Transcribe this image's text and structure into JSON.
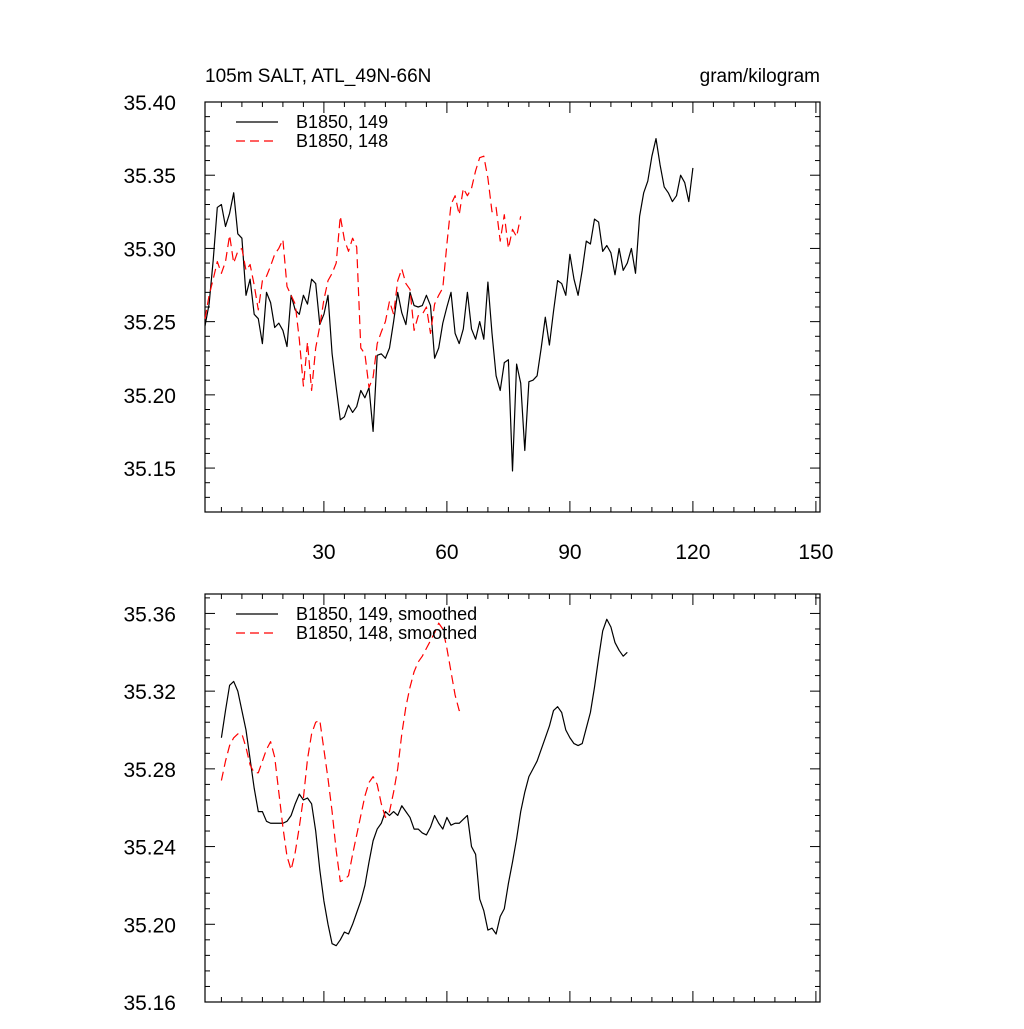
{
  "colors": {
    "series_149": "#000000",
    "series_148": "#ff0000",
    "axis": "#000000",
    "background": "#ffffff"
  },
  "chart_data": [
    {
      "type": "line",
      "title": "105m SALT, ATL_49N-66N",
      "units": "gram/kilogram",
      "xlim": [
        1,
        151
      ],
      "ylim": [
        35.12,
        35.4
      ],
      "x_ticks": [
        30,
        60,
        90,
        120,
        150
      ],
      "y_ticks": [
        35.15,
        35.2,
        35.25,
        35.3,
        35.35,
        35.4
      ],
      "y_tick_labels": [
        "35.15",
        "35.20",
        "35.25",
        "35.30",
        "35.35",
        "35.40"
      ],
      "x_tick_labels": [
        "30",
        "60",
        "90",
        "120",
        "150"
      ],
      "grid": false,
      "legend_position": "top-left",
      "series": [
        {
          "name": "B1850, 149",
          "color": "#000000",
          "dash": "solid",
          "x_start": 1,
          "values": [
            35.247,
            35.262,
            35.292,
            35.328,
            35.33,
            35.315,
            35.324,
            35.338,
            35.31,
            35.307,
            35.268,
            35.279,
            35.255,
            35.252,
            35.235,
            35.27,
            35.263,
            35.246,
            35.249,
            35.244,
            35.233,
            35.268,
            35.258,
            35.255,
            35.268,
            35.262,
            35.279,
            35.276,
            35.248,
            35.255,
            35.268,
            35.228,
            35.205,
            35.183,
            35.185,
            35.193,
            35.188,
            35.192,
            35.203,
            35.198,
            35.205,
            35.175,
            35.227,
            35.228,
            35.225,
            35.232,
            35.25,
            35.27,
            35.256,
            35.248,
            35.27,
            35.261,
            35.26,
            35.261,
            35.268,
            35.261,
            35.225,
            35.232,
            35.249,
            35.26,
            35.27,
            35.242,
            35.235,
            35.245,
            35.27,
            35.245,
            35.238,
            35.25,
            35.238,
            35.277,
            35.242,
            35.213,
            35.203,
            35.222,
            35.224,
            35.148,
            35.221,
            35.208,
            35.162,
            35.209,
            35.21,
            35.213,
            35.232,
            35.253,
            35.234,
            35.257,
            35.278,
            35.276,
            35.268,
            35.296,
            35.279,
            35.268,
            35.285,
            35.305,
            35.303,
            35.32,
            35.318,
            35.298,
            35.302,
            35.297,
            35.282,
            35.3,
            35.285,
            35.29,
            35.3,
            35.283,
            35.322,
            35.338,
            35.346,
            35.363,
            35.375,
            35.357,
            35.342,
            35.338,
            35.332,
            35.336,
            35.35,
            35.345,
            35.332,
            35.355
          ]
        },
        {
          "name": "B1850, 148",
          "color": "#ff0000",
          "dash": "dashed",
          "x_start": 1,
          "values": [
            35.252,
            35.268,
            35.279,
            35.291,
            35.283,
            35.291,
            35.309,
            35.29,
            35.298,
            35.3,
            35.285,
            35.289,
            35.275,
            35.258,
            35.278,
            35.281,
            35.288,
            35.296,
            35.3,
            35.306,
            35.274,
            35.268,
            35.262,
            35.238,
            35.206,
            35.236,
            35.203,
            35.232,
            35.247,
            35.265,
            35.278,
            35.283,
            35.29,
            35.322,
            35.306,
            35.298,
            35.307,
            35.301,
            35.232,
            35.228,
            35.205,
            35.212,
            35.235,
            35.243,
            35.25,
            35.264,
            35.255,
            35.278,
            35.286,
            35.276,
            35.272,
            35.244,
            35.254,
            35.255,
            35.26,
            35.242,
            35.262,
            35.268,
            35.273,
            35.303,
            35.33,
            35.336,
            35.323,
            35.341,
            35.336,
            35.341,
            35.353,
            35.362,
            35.363,
            35.348,
            35.325,
            35.328,
            35.305,
            35.323,
            35.3,
            35.313,
            35.308,
            35.322
          ]
        }
      ]
    },
    {
      "type": "line",
      "title": "",
      "xlim": [
        1,
        151
      ],
      "ylim": [
        35.16,
        35.37
      ],
      "y_ticks": [
        35.16,
        35.2,
        35.24,
        35.28,
        35.32,
        35.36
      ],
      "y_tick_labels": [
        "35.16",
        "35.20",
        "35.24",
        "35.28",
        "35.32",
        "35.36"
      ],
      "grid": false,
      "legend_position": "top-left",
      "series": [
        {
          "name": "B1850, 149, smoothed",
          "color": "#000000",
          "dash": "solid",
          "x_start": 5,
          "values": [
            35.296,
            35.31,
            35.323,
            35.325,
            35.32,
            35.31,
            35.3,
            35.285,
            35.27,
            35.258,
            35.258,
            35.253,
            35.252,
            35.252,
            35.252,
            35.252,
            35.253,
            35.256,
            35.262,
            35.267,
            35.264,
            35.265,
            35.262,
            35.248,
            35.228,
            35.212,
            35.2,
            35.19,
            35.189,
            35.192,
            35.196,
            35.195,
            35.2,
            35.206,
            35.212,
            35.22,
            35.232,
            35.243,
            35.249,
            35.252,
            35.258,
            35.256,
            35.258,
            35.256,
            35.261,
            35.258,
            35.255,
            35.249,
            35.249,
            35.247,
            35.246,
            35.25,
            35.256,
            35.252,
            35.249,
            35.255,
            35.251,
            35.252,
            35.252,
            35.254,
            35.256,
            35.24,
            35.236,
            35.213,
            35.207,
            35.197,
            35.198,
            35.195,
            35.204,
            35.208,
            35.221,
            35.232,
            35.244,
            35.258,
            35.268,
            35.276,
            35.28,
            35.284,
            35.29,
            35.296,
            35.302,
            35.31,
            35.312,
            35.309,
            35.3,
            35.296,
            35.293,
            35.292,
            35.293,
            35.301,
            35.309,
            35.322,
            35.337,
            35.351,
            35.357,
            35.353,
            35.345,
            35.341,
            35.338,
            35.34
          ]
        },
        {
          "name": "B1850, 148, smoothed",
          "color": "#ff0000",
          "dash": "dashed",
          "x_start": 5,
          "values": [
            35.274,
            35.284,
            35.292,
            35.296,
            35.298,
            35.298,
            35.291,
            35.282,
            35.278,
            35.278,
            35.284,
            35.29,
            35.294,
            35.286,
            35.268,
            35.25,
            35.235,
            35.228,
            35.237,
            35.25,
            35.265,
            35.285,
            35.298,
            35.304,
            35.305,
            35.29,
            35.275,
            35.258,
            35.238,
            35.222,
            35.223,
            35.225,
            35.236,
            35.246,
            35.256,
            35.266,
            35.273,
            35.276,
            35.272,
            35.262,
            35.255,
            35.258,
            35.268,
            35.28,
            35.298,
            35.312,
            35.322,
            35.33,
            35.335,
            35.338,
            35.342,
            35.346,
            35.35,
            35.355,
            35.352,
            35.342,
            35.33,
            35.318,
            35.31,
            35.312
          ]
        }
      ]
    }
  ]
}
